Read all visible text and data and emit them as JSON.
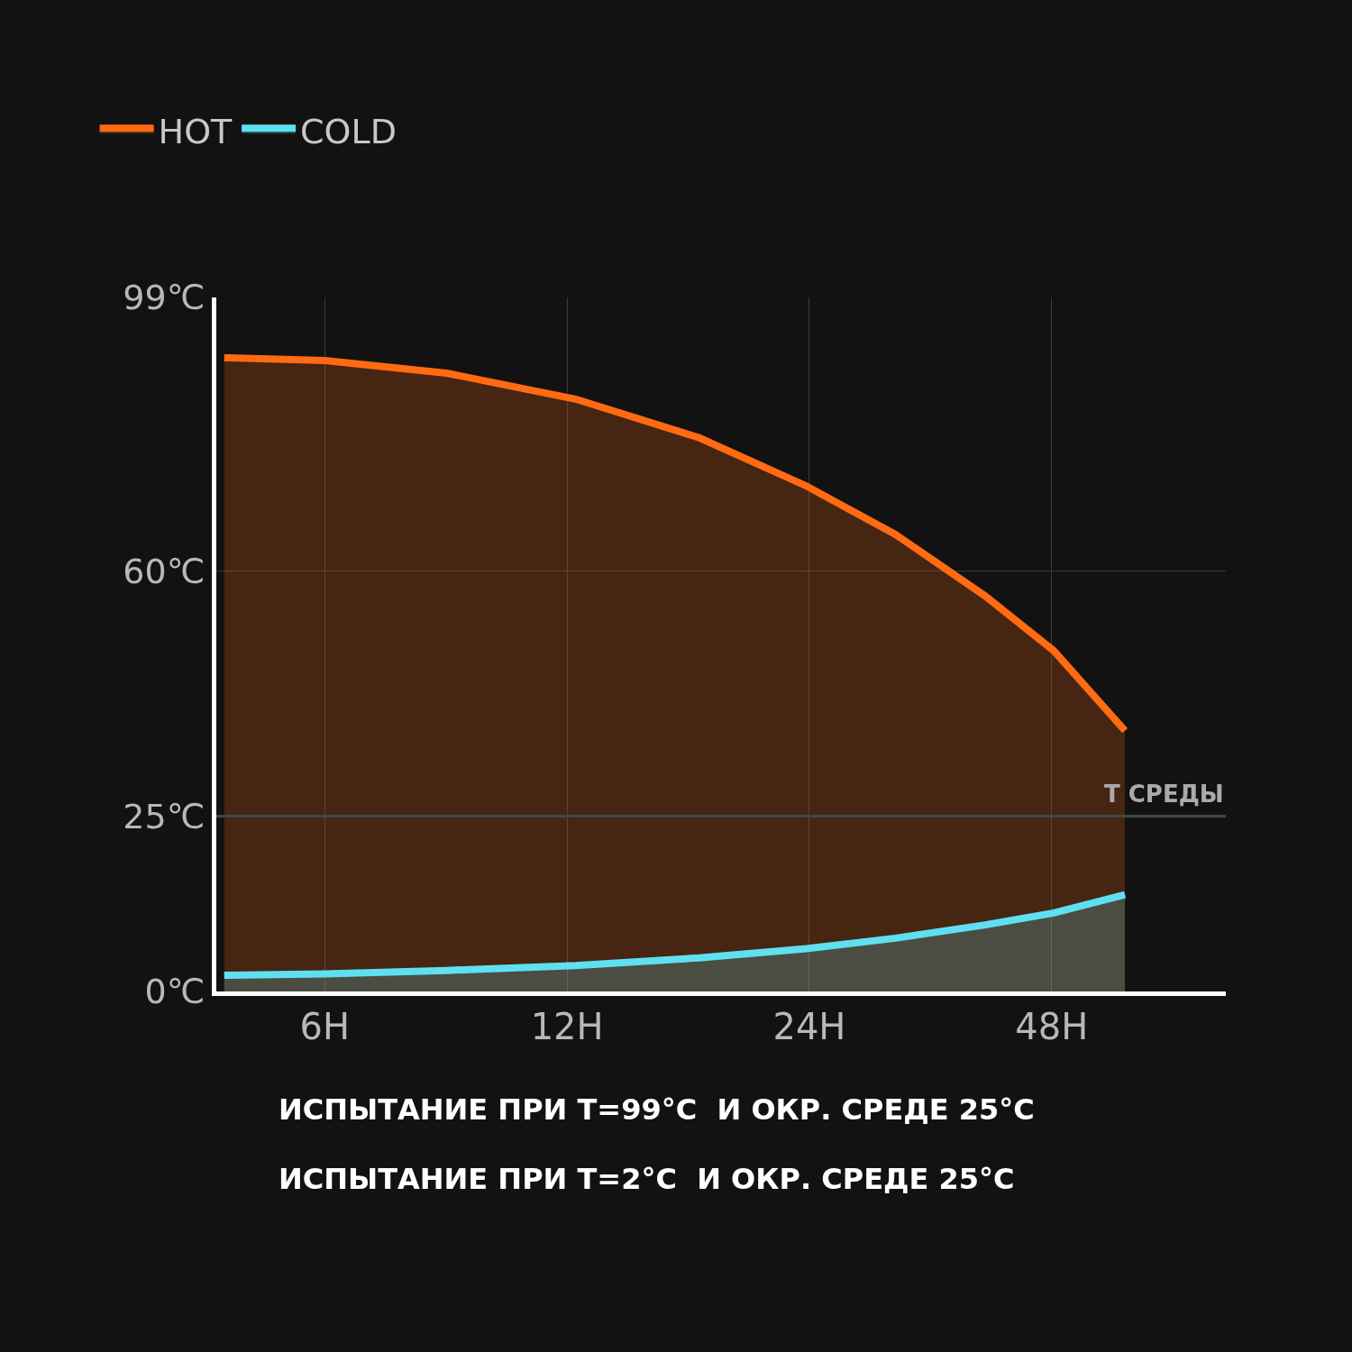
{
  "chart_data": {
    "type": "area",
    "log": "x",
    "grid": true,
    "legend": "top left",
    "x": [
      4.5,
      6,
      8.5,
      12.3,
      17.5,
      23.8,
      30.7,
      39.7,
      48.3,
      59.2
    ],
    "xlim": [
      4.4,
      79
    ],
    "xticks": [
      {
        "value": 6,
        "label": "6H"
      },
      {
        "value": 12,
        "label": "12H"
      },
      {
        "value": 24,
        "label": "24H"
      },
      {
        "value": 48,
        "label": "48H"
      }
    ],
    "ylim": [
      0,
      99
    ],
    "yticks": [
      {
        "value": 0,
        "label": "0℃"
      },
      {
        "value": 25,
        "label": "25℃"
      },
      {
        "value": 60,
        "label": "60℃"
      },
      {
        "value": 99,
        "label": "99℃"
      }
    ],
    "series": [
      {
        "name": "HOT",
        "color": "#ff6a13",
        "values": [
          90.4,
          90,
          88.2,
          84.5,
          79,
          72.1,
          65.2,
          56.4,
          48.6,
          37.2
        ]
      },
      {
        "name": "COLD",
        "color": "#5fe0f0",
        "values": [
          2.3,
          2.5,
          3.0,
          3.7,
          4.8,
          6.1,
          7.6,
          9.5,
          11.2,
          13.8
        ]
      }
    ],
    "ref_lines": [
      {
        "axis": "y",
        "value": 25,
        "label": "T СРЕДЫ",
        "color": "#3a4a4a"
      }
    ],
    "annotations": [
      "ИСПЫТАНИЕ ПРИ T=99°C  И ОКР. СРЕДЕ 25°C",
      "ИСПЫТАНИЕ ПРИ T=2°C  И ОКР. СРЕДЕ 25°C"
    ]
  }
}
